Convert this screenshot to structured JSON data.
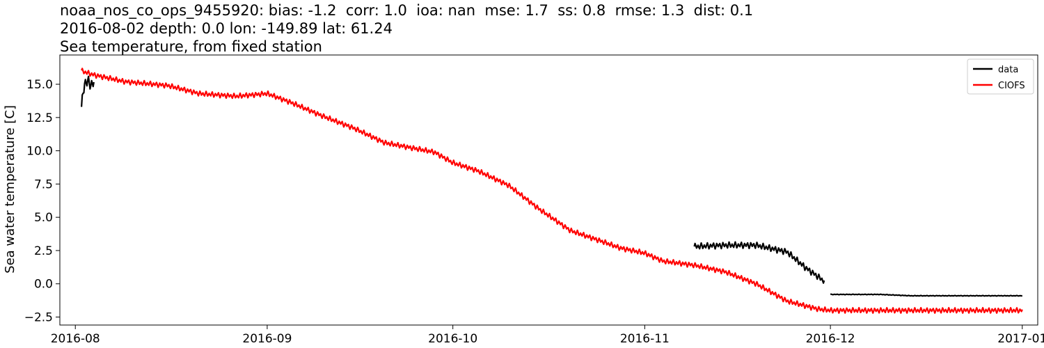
{
  "title": {
    "line1": "noaa_nos_co_ops_9455920: bias: -1.2  corr: 1.0  ioa: nan  mse: 1.7  ss: 0.8  rmse: 1.3  dist: 0.1",
    "line2": "2016-08-02 depth: 0.0 lon: -149.89 lat: 61.24",
    "line3": "Sea temperature, from fixed station"
  },
  "chart_data": {
    "type": "line",
    "ylabel": "Sea water temperature [C]",
    "xlabel": "",
    "x_range_days": [
      -2.5,
      155.5
    ],
    "x_origin": "2016-08-01",
    "ylim": [
      -3.1,
      17.2
    ],
    "xticks": [
      {
        "day": 0,
        "label": "2016-08"
      },
      {
        "day": 31,
        "label": "2016-09"
      },
      {
        "day": 61,
        "label": "2016-10"
      },
      {
        "day": 92,
        "label": "2016-11"
      },
      {
        "day": 122,
        "label": "2016-12"
      },
      {
        "day": 153,
        "label": "2017-01"
      }
    ],
    "yticks": [
      {
        "value": -2.5,
        "label": "−2.5"
      },
      {
        "value": 0.0,
        "label": "0.0"
      },
      {
        "value": 2.5,
        "label": "2.5"
      },
      {
        "value": 5.0,
        "label": "5.0"
      },
      {
        "value": 7.5,
        "label": "7.5"
      },
      {
        "value": 10.0,
        "label": "10.0"
      },
      {
        "value": 12.5,
        "label": "12.5"
      },
      {
        "value": 15.0,
        "label": "15.0"
      }
    ],
    "legend": {
      "position": "top-right"
    },
    "series": [
      {
        "name": "data",
        "color": "#000000",
        "segments": [
          {
            "days": [
              1,
              1.5,
              3.0
            ],
            "values": [
              13.2,
              15.2,
              15.0
            ],
            "noise": 1.1
          },
          {
            "days": [
              100,
              105,
              110,
              115,
              118,
              121
            ],
            "values": [
              2.8,
              2.9,
              2.9,
              2.4,
              1.2,
              0.2
            ],
            "noise": 0.55
          },
          {
            "days": [
              122,
              130,
              135,
              153
            ],
            "values": [
              -0.8,
              -0.8,
              -0.9,
              -0.9
            ],
            "noise": 0.05
          }
        ]
      },
      {
        "name": "CIOFS",
        "color": "#ff0000",
        "segments": [
          {
            "days": [
              1,
              3,
              8,
              15,
              20,
              26,
              31,
              35,
              40,
              45,
              50,
              58,
              61,
              65,
              70,
              75,
              80,
              85,
              88,
              92,
              95,
              100,
              105,
              110,
              115,
              120,
              122,
              130,
              153
            ],
            "values": [
              16.0,
              15.7,
              15.2,
              14.9,
              14.3,
              14.1,
              14.3,
              13.6,
              12.6,
              11.7,
              10.6,
              9.9,
              9.1,
              8.5,
              7.4,
              5.6,
              4.0,
              3.2,
              2.7,
              2.3,
              1.7,
              1.4,
              0.9,
              0.0,
              -1.3,
              -1.9,
              -2.0,
              -2.0,
              -2.0
            ],
            "noise": 0.45
          }
        ]
      }
    ]
  }
}
